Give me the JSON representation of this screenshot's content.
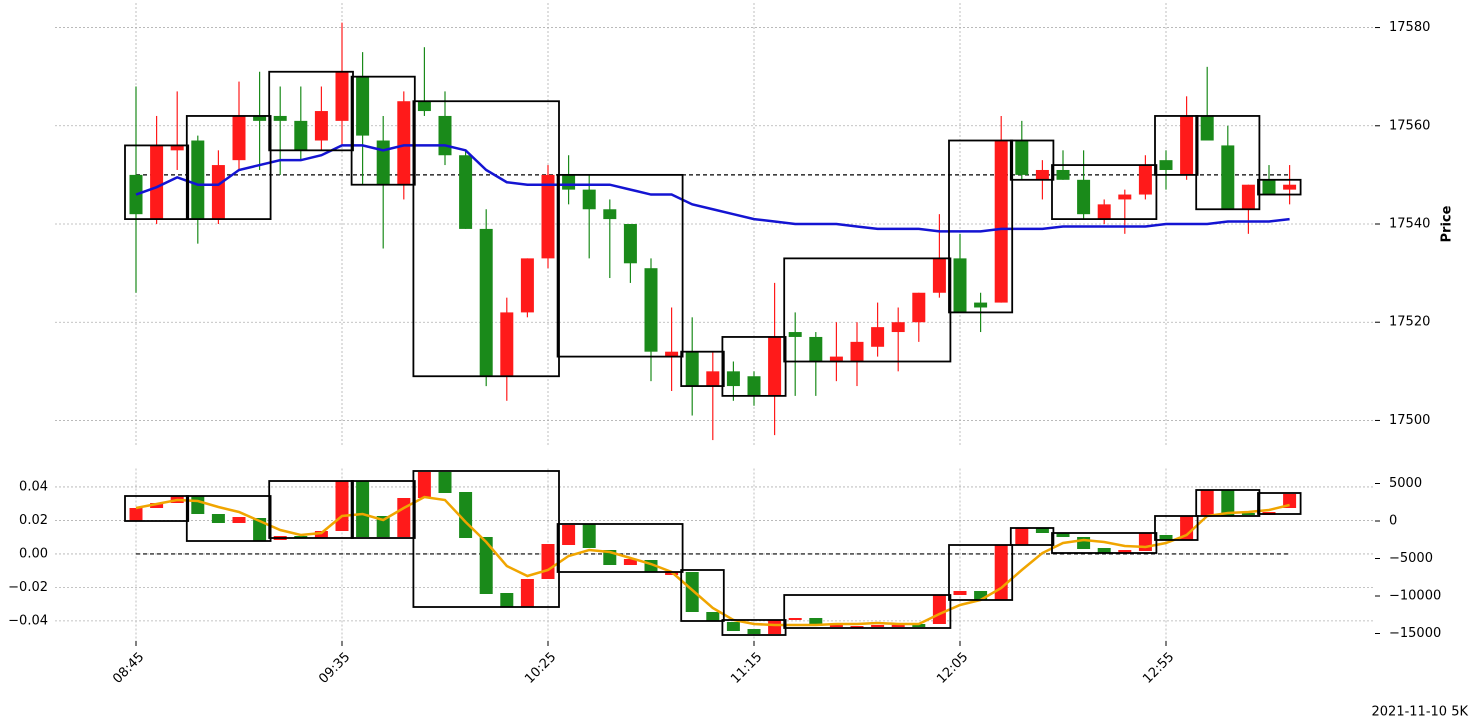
{
  "chart_data": [
    {
      "type": "candlestick",
      "ylabel": "Price",
      "ylim": [
        17495,
        17585
      ],
      "yticks": [
        17500,
        17520,
        17540,
        17560,
        17580
      ],
      "grid": true,
      "up_color": "#1a8a1a",
      "down_color": "#ff1a1a",
      "box_color": "#000000",
      "open": [
        17542,
        17556,
        17556,
        17541,
        17552,
        17562,
        17561,
        17561,
        17555,
        17563,
        17571,
        17558,
        17548,
        17565,
        17563,
        17554,
        17539,
        17509,
        17522,
        17533,
        17550,
        17547,
        17543,
        17541,
        17532,
        17514,
        17514,
        17507,
        17510,
        17507,
        17505,
        17517,
        17517,
        17512,
        17513,
        17516,
        17519,
        17520,
        17526,
        17533,
        17522,
        17523,
        17557,
        17550,
        17551,
        17549,
        17542,
        17544,
        17546,
        17552,
        17551,
        17562,
        17557,
        17543,
        17548,
        17546,
        17548
      ],
      "high": [
        17568,
        17562,
        17567,
        17558,
        17555,
        17569,
        17571,
        17568,
        17568,
        17568,
        17581,
        17575,
        17562,
        17567,
        17576,
        17567,
        17555,
        17543,
        17525,
        17533,
        17552,
        17554,
        17550,
        17545,
        17540,
        17533,
        17523,
        17521,
        17514,
        17512,
        17510,
        17528,
        17522,
        17518,
        17520,
        17520,
        17524,
        17523,
        17526,
        17542,
        17538,
        17526,
        17562,
        17561,
        17553,
        17555,
        17555,
        17545,
        17547,
        17554,
        17555,
        17566,
        17572,
        17560,
        17548,
        17552,
        17552
      ],
      "low": [
        17526,
        17540,
        17551,
        17536,
        17540,
        17551,
        17551,
        17550,
        17553,
        17555,
        17556,
        17548,
        17535,
        17545,
        17562,
        17552,
        17539,
        17507,
        17504,
        17521,
        17531,
        17544,
        17533,
        17529,
        17528,
        17508,
        17506,
        17501,
        17496,
        17504,
        17503,
        17497,
        17505,
        17505,
        17508,
        17507,
        17513,
        17510,
        17516,
        17525,
        17522,
        17518,
        17524,
        17549,
        17545,
        17549,
        17541,
        17540,
        17538,
        17545,
        17547,
        17549,
        17557,
        17543,
        17538,
        17546,
        17544
      ],
      "close": [
        17550,
        17541,
        17555,
        17557,
        17541,
        17553,
        17562,
        17562,
        17561,
        17557,
        17561,
        17570,
        17557,
        17548,
        17565,
        17562,
        17554,
        17539,
        17509,
        17522,
        17533,
        17550,
        17547,
        17543,
        17540,
        17531,
        17513,
        17514,
        17507,
        17510,
        17509,
        17505,
        17518,
        17517,
        17512,
        17512,
        17515,
        17518,
        17520,
        17526,
        17533,
        17524,
        17524,
        17557,
        17549,
        17551,
        17549,
        17541,
        17545,
        17546,
        17553,
        17550,
        17562,
        17556,
        17543,
        17549,
        17547
      ],
      "lines": [
        {
          "color": "#1414d2",
          "values": [
            17546,
            17547.5,
            17549.5,
            17548,
            17548,
            17551,
            17552,
            17553,
            17553,
            17554,
            17556,
            17556,
            17555,
            17556,
            17556,
            17556,
            17555,
            17551,
            17548.5,
            17548,
            17548,
            17548,
            17548,
            17548,
            17547,
            17546,
            17546,
            17544,
            17543,
            17542,
            17541,
            17540.5,
            17540,
            17540,
            17540,
            17539.5,
            17539,
            17539,
            17539,
            17538.5,
            17538.5,
            17538.5,
            17539,
            17539,
            17539,
            17539.5,
            17539.5,
            17539.5,
            17539.5,
            17539.5,
            17540,
            17540,
            17540,
            17540.5,
            17540.5,
            17540.5,
            17541
          ]
        }
      ],
      "hline": 17550,
      "boxes": [
        {
          "from": 0,
          "to": 2,
          "top": 17556,
          "bottom": 17541
        },
        {
          "from": 3,
          "to": 6,
          "top": 17562,
          "bottom": 17541
        },
        {
          "from": 7,
          "to": 10,
          "top": 17571,
          "bottom": 17555
        },
        {
          "from": 11,
          "to": 13,
          "top": 17570,
          "bottom": 17548
        },
        {
          "from": 14,
          "to": 20,
          "top": 17565,
          "bottom": 17509
        },
        {
          "from": 21,
          "to": 26,
          "top": 17550,
          "bottom": 17513
        },
        {
          "from": 27,
          "to": 28,
          "top": 17514,
          "bottom": 17507
        },
        {
          "from": 29,
          "to": 31,
          "top": 17517,
          "bottom": 17505
        },
        {
          "from": 32,
          "to": 39,
          "top": 17533,
          "bottom": 17512
        },
        {
          "from": 40,
          "to": 42,
          "top": 17557,
          "bottom": 17522
        },
        {
          "from": 43,
          "to": 44,
          "top": 17557,
          "bottom": 17549
        },
        {
          "from": 45,
          "to": 49,
          "top": 17552,
          "bottom": 17541
        },
        {
          "from": 50,
          "to": 51,
          "top": 17562,
          "bottom": 17550
        },
        {
          "from": 52,
          "to": 54,
          "top": 17562,
          "bottom": 17543
        },
        {
          "from": 55,
          "to": 56,
          "top": 17549,
          "bottom": 17546
        }
      ]
    },
    {
      "type": "candlestick",
      "annotation": "2021-11-10 5K",
      "categories": [
        "08:45",
        null,
        null,
        null,
        null,
        null,
        null,
        null,
        null,
        null,
        "09:35",
        null,
        null,
        null,
        null,
        null,
        null,
        null,
        null,
        null,
        "10:25",
        null,
        null,
        null,
        null,
        null,
        null,
        null,
        null,
        null,
        "11:15",
        null,
        null,
        null,
        null,
        null,
        null,
        null,
        null,
        null,
        "12:05",
        null,
        null,
        null,
        null,
        null,
        null,
        null,
        null,
        null,
        "12:55",
        null,
        null,
        null,
        null,
        null,
        null
      ],
      "ylim": [
        -0.052,
        0.051
      ],
      "yticks": [
        0.04,
        0.02,
        {
          "value": 0,
          "label": "0.00"
        },
        {
          "value": -0.02,
          "label": "−0.02"
        },
        {
          "value": -0.04,
          "label": "−0.04"
        }
      ],
      "grid": true,
      "y2lim": [
        -16000,
        7000
      ],
      "y2ticks": [
        5000,
        0,
        {
          "value": -5000,
          "label": "−5000"
        },
        {
          "value": -10000,
          "label": "−10000"
        },
        {
          "value": -15000,
          "label": "−15000"
        }
      ],
      "axis": "y2",
      "up_color": "#1a8a1a",
      "down_color": "#ff1a1a",
      "box_color": "#000000",
      "open": [
        1733,
        2400,
        3333,
        933,
        -267,
        533,
        -2667,
        -2000,
        -2267,
        -1333,
        5333,
        -2133,
        -2133,
        3067,
        6533,
        3733,
        -2267,
        -9733,
        -11467,
        -7733,
        -3067,
        -533,
        -3600,
        -5867,
        -5067,
        -6800,
        -6800,
        -12133,
        -13333,
        -14667,
        -15067,
        -13200,
        -12933,
        -14000,
        -13867,
        -14000,
        -13867,
        -13867,
        -14133,
        -9867,
        -9333,
        -10533,
        -3200,
        -933,
        -1600,
        -2133,
        -3733,
        -4267,
        -3867,
        -1600,
        -2533,
        667,
        4133,
        667,
        800,
        1200,
        3600
      ],
      "close": [
        0,
        1733,
        2400,
        3333,
        933,
        -267,
        400,
        -2533,
        -2000,
        -2267,
        -1333,
        5333,
        667,
        -2133,
        3067,
        6533,
        3867,
        -2133,
        -9600,
        -11467,
        -7733,
        -3200,
        -400,
        -3867,
        -5867,
        -5200,
        -7200,
        -6800,
        -12133,
        -13467,
        -14400,
        -15067,
        -13200,
        -12933,
        -14133,
        -14133,
        -14133,
        -14133,
        -13733,
        -13733,
        -9867,
        -9333,
        -10533,
        -3200,
        -933,
        -1600,
        -2133,
        -3600,
        -4267,
        -4000,
        -1867,
        -2533,
        667,
        4133,
        1067,
        800,
        1733
      ],
      "lines": [
        {
          "color": "#f0a500",
          "values": [
            1733,
            2267,
            2800,
            2667,
            1867,
            1200,
            0,
            -1200,
            -1867,
            -1600,
            667,
            933,
            133,
            1733,
            3200,
            2800,
            -133,
            -2800,
            -6000,
            -7333,
            -6533,
            -4667,
            -3867,
            -4133,
            -4933,
            -5733,
            -6800,
            -9200,
            -11600,
            -13200,
            -13733,
            -13867,
            -13867,
            -13867,
            -13733,
            -13733,
            -13600,
            -13733,
            -13733,
            -12400,
            -11200,
            -10533,
            -8933,
            -6533,
            -4267,
            -2933,
            -2533,
            -2800,
            -3333,
            -3467,
            -2933,
            -1867,
            667,
            1067,
            1200,
            1467,
            2133
          ]
        }
      ],
      "hline": 0,
      "boxes": [
        {
          "from": 0,
          "to": 2,
          "top": 3333,
          "bottom": 0
        },
        {
          "from": 3,
          "to": 6,
          "top": 3333,
          "bottom": -2667
        },
        {
          "from": 7,
          "to": 10,
          "top": 5333,
          "bottom": -2267
        },
        {
          "from": 11,
          "to": 13,
          "top": 5333,
          "bottom": -2267
        },
        {
          "from": 14,
          "to": 20,
          "top": 6667,
          "bottom": -11467
        },
        {
          "from": 21,
          "to": 26,
          "top": -400,
          "bottom": -6800
        },
        {
          "from": 27,
          "to": 28,
          "top": -6533,
          "bottom": -13333
        },
        {
          "from": 29,
          "to": 31,
          "top": -13200,
          "bottom": -15200
        },
        {
          "from": 32,
          "to": 39,
          "top": -9867,
          "bottom": -14267
        },
        {
          "from": 40,
          "to": 42,
          "top": -3200,
          "bottom": -10533
        },
        {
          "from": 43,
          "to": 44,
          "top": -933,
          "bottom": -3200
        },
        {
          "from": 45,
          "to": 49,
          "top": -1600,
          "bottom": -4267
        },
        {
          "from": 50,
          "to": 51,
          "top": 667,
          "bottom": -2533
        },
        {
          "from": 52,
          "to": 54,
          "top": 4133,
          "bottom": 667
        },
        {
          "from": 55,
          "to": 56,
          "top": 3733,
          "bottom": 933
        }
      ]
    }
  ]
}
